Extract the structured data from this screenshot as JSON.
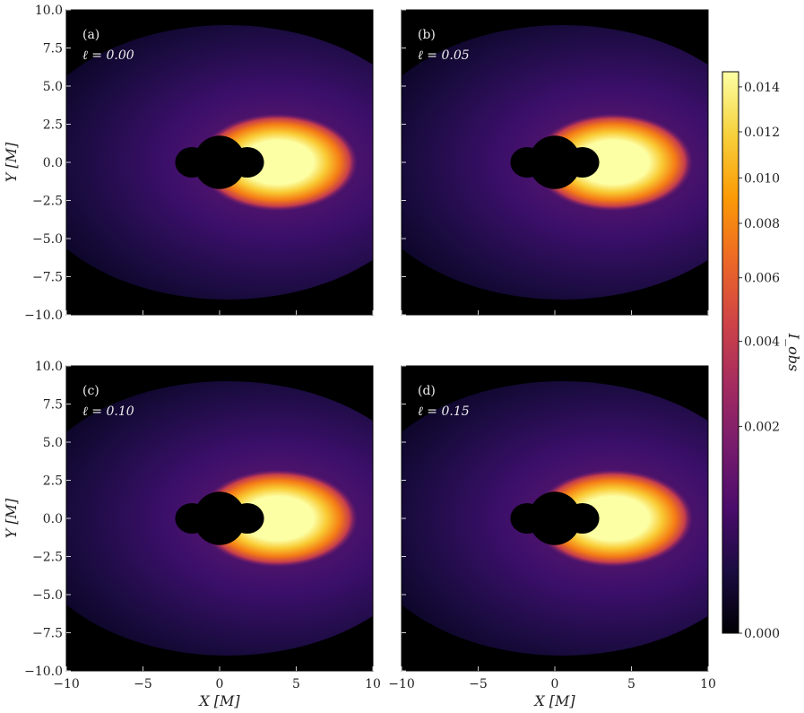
{
  "chart_data": {
    "type": "heatmap",
    "description_free": true,
    "colormap": "inferno",
    "colors": {
      "stops": [
        "#000004",
        "#1b0c41",
        "#4a0c6b",
        "#781c6d",
        "#a52c60",
        "#cf4446",
        "#ed6925",
        "#fb9b06",
        "#f7d13d",
        "#fcffa4"
      ]
    },
    "xlim": [
      -10,
      10
    ],
    "ylim": [
      -10,
      10
    ],
    "xticks": [
      "−10",
      "−5",
      "0",
      "5",
      "10"
    ],
    "yticks": [
      "10.0",
      "7.5",
      "5.0",
      "2.5",
      "0.0",
      "−2.5",
      "−5.0",
      "−7.5",
      "−10.0"
    ],
    "xlabel": "X [M]",
    "ylabel": "Y [M]",
    "colorbar": {
      "label": "I_obs",
      "ticks": [
        "0.014",
        "0.012",
        "0.010",
        "0.008",
        "0.006",
        "0.004",
        "0.002",
        "0.000"
      ],
      "vmin": 0.0,
      "vmax": 0.0148,
      "scale": "power-law"
    },
    "panels": [
      {
        "tag": "(a)",
        "ell_label": "ℓ = 0.00",
        "ell": 0.0
      },
      {
        "tag": "(b)",
        "ell_label": "ℓ = 0.05",
        "ell": 0.05
      },
      {
        "tag": "(c)",
        "ell_label": "ℓ = 0.10",
        "ell": 0.1
      },
      {
        "tag": "(d)",
        "ell_label": "ℓ = 0.15",
        "ell": 0.15
      }
    ]
  }
}
